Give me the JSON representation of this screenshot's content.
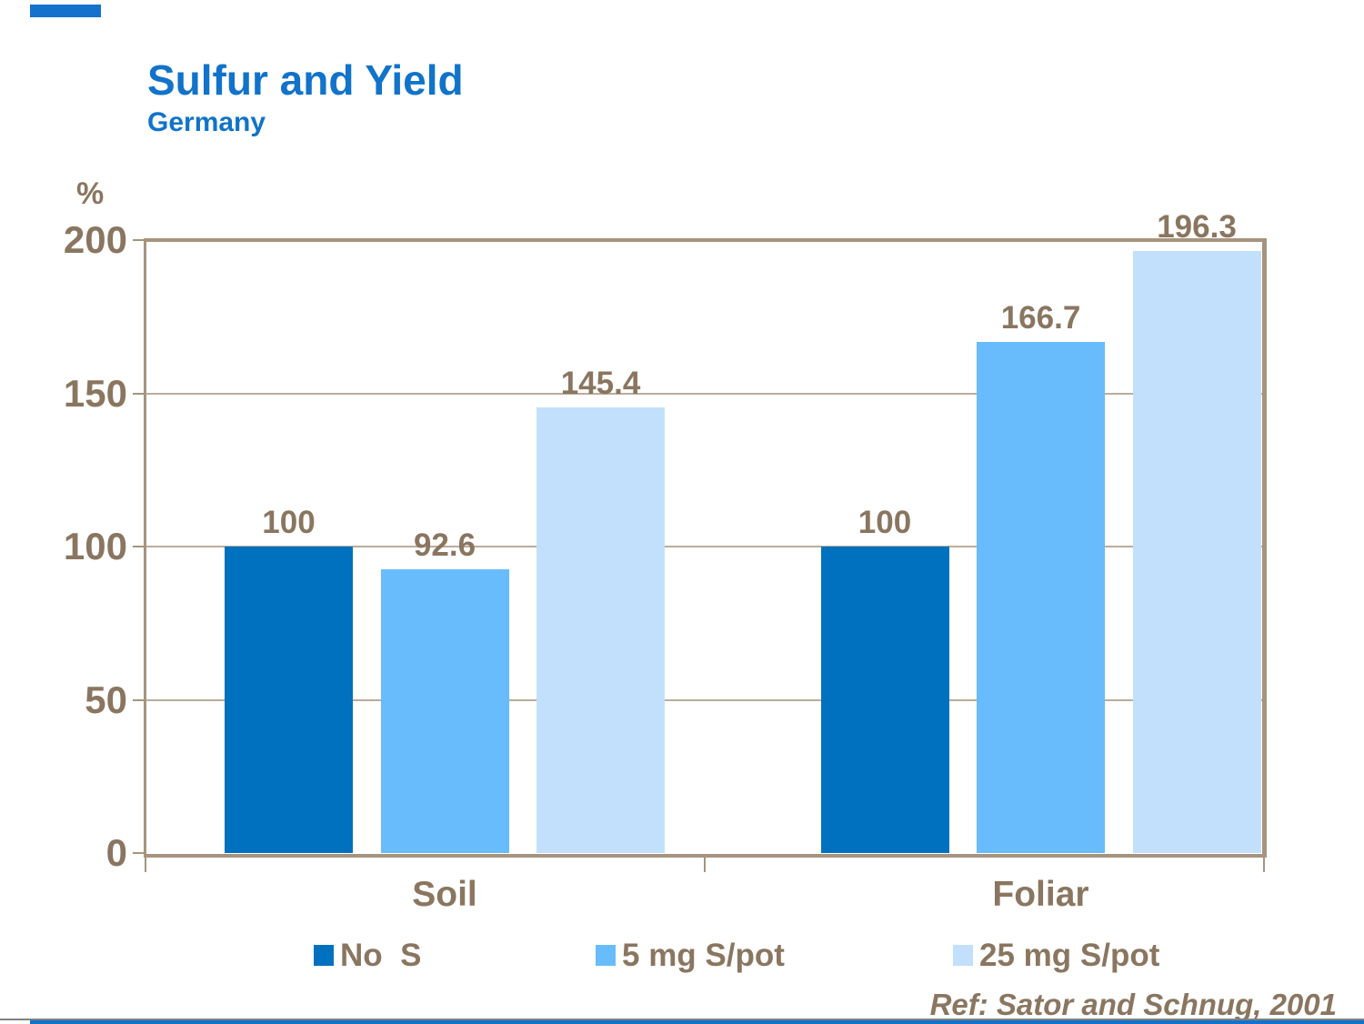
{
  "header": {
    "title": "Sulfur and Yield",
    "subtitle": "Germany"
  },
  "footer": {
    "reference": "Ref: Sator and Schnug, 2001"
  },
  "colors": {
    "title_blue": "#1173C9",
    "accent_blue": "#1372CC",
    "label_brown": "#8A7660",
    "axis_tan": "#A6947E",
    "gridline_tan": "#BCAC9A",
    "series_dark_blue": "#0071BF",
    "series_medium_blue": "#68BCFC",
    "series_pale_blue": "#C2E0FC",
    "footer_rule_gray": "#808080"
  },
  "chart_data": {
    "type": "bar",
    "title": "Sulfur and Yield",
    "subtitle": "Germany",
    "xlabel": "",
    "ylabel": "%",
    "ylim": [
      0,
      200
    ],
    "yticks": [
      0,
      50,
      100,
      150,
      200
    ],
    "grid": "horizontal",
    "legend_position": "bottom",
    "categories": [
      "Soil",
      "Foliar"
    ],
    "series": [
      {
        "name": "No  S",
        "color": "#0071BF",
        "values": [
          100,
          100
        ]
      },
      {
        "name": "5 mg S/pot",
        "color": "#68BCFC",
        "values": [
          92.6,
          166.7
        ]
      },
      {
        "name": "25 mg S/pot",
        "color": "#C2E0FC",
        "values": [
          145.4,
          196.3
        ]
      }
    ],
    "value_labels": [
      [
        "100",
        "92.6",
        "145.4"
      ],
      [
        "100",
        "166.7",
        "196.3"
      ]
    ]
  }
}
